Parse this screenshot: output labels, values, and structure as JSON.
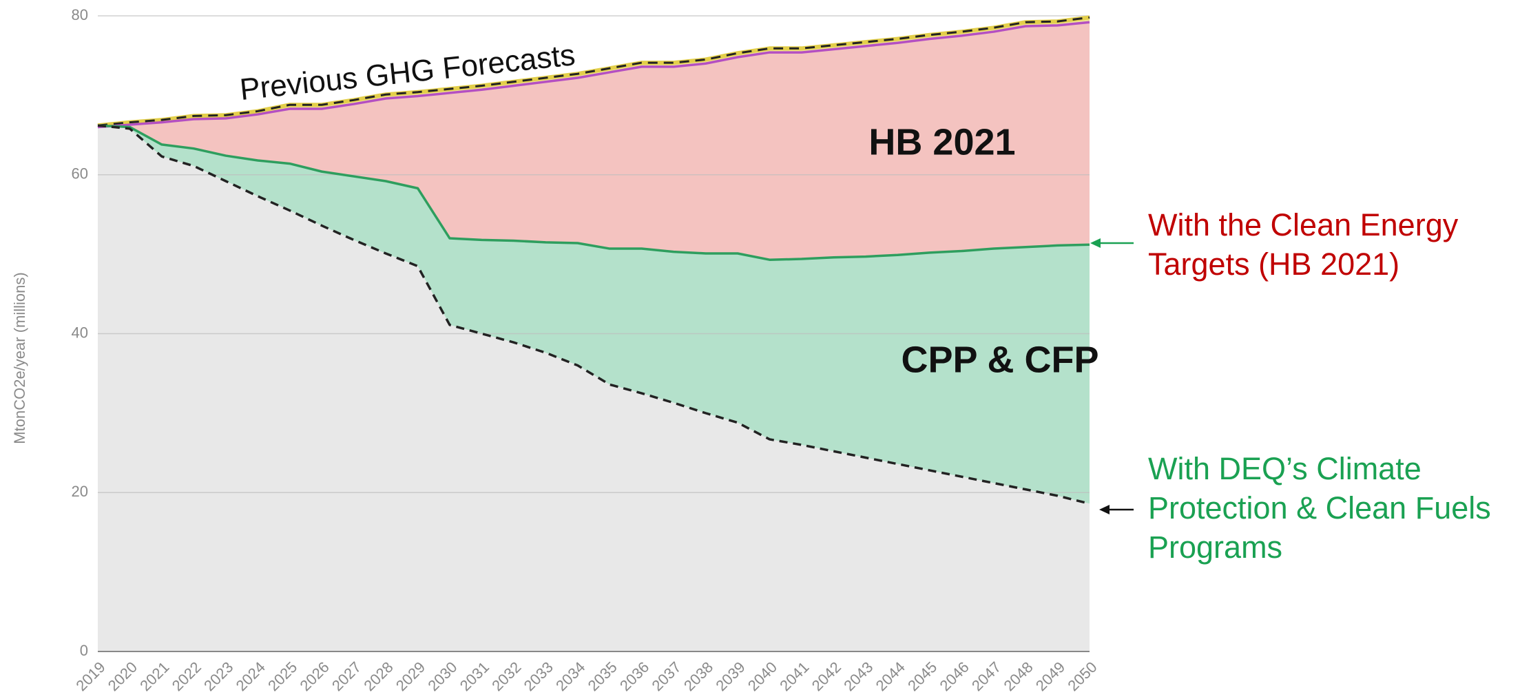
{
  "chart_data": {
    "type": "area",
    "y_label": "MtonCO2e/year (millions)",
    "x": [
      2019,
      2020,
      2021,
      2022,
      2023,
      2024,
      2025,
      2026,
      2027,
      2028,
      2029,
      2030,
      2031,
      2032,
      2033,
      2034,
      2035,
      2036,
      2037,
      2038,
      2039,
      2040,
      2041,
      2042,
      2043,
      2044,
      2045,
      2046,
      2047,
      2048,
      2049,
      2050
    ],
    "xlim": [
      2019,
      2050
    ],
    "xticks": [
      2019,
      2020,
      2021,
      2022,
      2023,
      2024,
      2025,
      2026,
      2027,
      2028,
      2029,
      2030,
      2031,
      2032,
      2033,
      2034,
      2035,
      2036,
      2037,
      2038,
      2039,
      2040,
      2041,
      2042,
      2043,
      2044,
      2045,
      2046,
      2047,
      2048,
      2049,
      2050
    ],
    "ylim": [
      0,
      80
    ],
    "yticks": [
      0,
      20,
      40,
      60,
      80
    ],
    "grid": true,
    "series": [
      {
        "color": "#e3cf4a",
        "dash_color": "#222222",
        "fill": "#efe49a",
        "values": [
          66.2,
          66.6,
          66.9,
          67.4,
          67.5,
          68.0,
          68.8,
          68.8,
          69.4,
          70.1,
          70.4,
          70.8,
          71.2,
          71.7,
          72.2,
          72.7,
          73.4,
          74.1,
          74.1,
          74.5,
          75.3,
          75.9,
          75.9,
          76.3,
          76.7,
          77.1,
          77.6,
          78.0,
          78.5,
          79.2,
          79.3,
          79.8
        ]
      },
      {
        "color": "#b44fc2",
        "fill": "#f4c3c0",
        "values": [
          66.0,
          66.3,
          66.6,
          67.0,
          67.1,
          67.6,
          68.3,
          68.3,
          68.9,
          69.6,
          69.9,
          70.3,
          70.7,
          71.2,
          71.7,
          72.2,
          72.9,
          73.6,
          73.6,
          74.0,
          74.8,
          75.4,
          75.4,
          75.8,
          76.2,
          76.6,
          77.1,
          77.5,
          78.0,
          78.7,
          78.8,
          79.2
        ]
      },
      {
        "color": "#2e9e5e",
        "fill": "#b4e1cb",
        "values": [
          66.2,
          66.0,
          63.8,
          63.3,
          62.4,
          61.8,
          61.4,
          60.4,
          59.8,
          59.2,
          58.3,
          52.0,
          51.8,
          51.7,
          51.5,
          51.4,
          50.7,
          50.7,
          50.3,
          50.1,
          50.1,
          49.3,
          49.4,
          49.6,
          49.7,
          49.9,
          50.2,
          50.4,
          50.7,
          50.9,
          51.1,
          51.2
        ]
      },
      {
        "color": "#222222",
        "dashed": true,
        "fill": "#e8e8e8",
        "values": [
          66.2,
          65.8,
          62.3,
          61.1,
          59.2,
          57.3,
          55.5,
          53.6,
          51.8,
          50.1,
          48.5,
          41.1,
          40.0,
          38.9,
          37.6,
          36.0,
          33.6,
          32.5,
          31.3,
          30.0,
          28.8,
          26.7,
          26.0,
          25.2,
          24.4,
          23.6,
          22.8,
          22.0,
          21.2,
          20.4,
          19.6,
          18.6
        ]
      }
    ],
    "annotations": [
      {
        "lines": [
          "Previous GHG Forecasts"
        ],
        "color": "#111111"
      },
      {
        "lines": [
          "HB 2021"
        ],
        "color": "#111111"
      },
      {
        "lines": [
          "CPP & CFP"
        ],
        "color": "#111111"
      },
      {
        "lines": [
          "With the Clean Energy",
          "Targets (HB 2021)"
        ],
        "color": "#c00000"
      },
      {
        "lines": [
          "With DEQ’s Climate",
          "Protection & Clean Fuels",
          "Programs"
        ],
        "color": "#1aa152"
      }
    ]
  }
}
